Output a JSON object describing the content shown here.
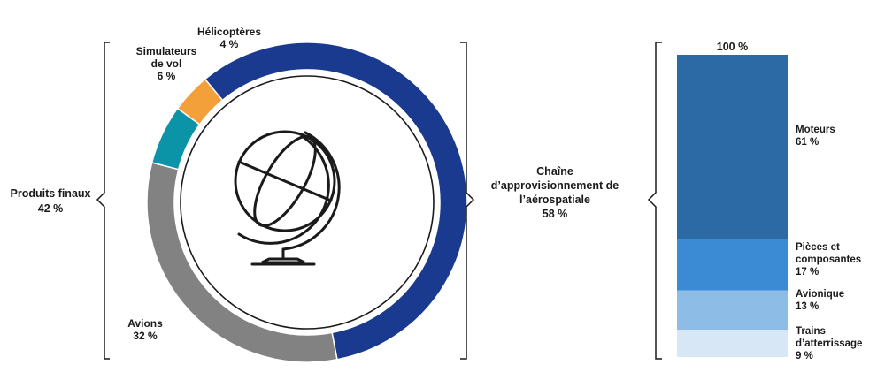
{
  "chart_data": [
    {
      "type": "pie",
      "variant": "donut",
      "slices": [
        {
          "name": "Chaîne d’approvisionnement de l’aérospatiale",
          "label_lines": [
            "Chaîne",
            "d’approvisionnement de",
            "l’aérospatiale"
          ],
          "value": 58,
          "value_label": "58 %",
          "color": "#1a3a8f"
        },
        {
          "name": "Avions",
          "label_lines": [
            "Avions"
          ],
          "value": 32,
          "value_label": "32 %",
          "color": "#828282"
        },
        {
          "name": "Simulateurs de vol",
          "label_lines": [
            "Simulateurs",
            "de vol"
          ],
          "value": 6,
          "value_label": "6 %",
          "color": "#0b94a8"
        },
        {
          "name": "Hélicoptères",
          "label_lines": [
            "Hélicoptères"
          ],
          "value": 4,
          "value_label": "4 %",
          "color": "#f4a03a"
        }
      ],
      "group": {
        "label": "Produits finaux",
        "value_label": "42 %"
      },
      "center_icon": "globe-icon"
    },
    {
      "type": "bar",
      "variant": "stacked-100",
      "total_label": "100 %",
      "segments": [
        {
          "name": "Moteurs",
          "label_lines": [
            "Moteurs"
          ],
          "value": 61,
          "value_label": "61 %",
          "color": "#2c6aa6"
        },
        {
          "name": "Pièces et composantes",
          "label_lines": [
            "Pièces et",
            "composantes"
          ],
          "value": 17,
          "value_label": "17 %",
          "color": "#3a8ad4"
        },
        {
          "name": "Avionique",
          "label_lines": [
            "Avionique"
          ],
          "value": 13,
          "value_label": "13 %",
          "color": "#8dbce6"
        },
        {
          "name": "Trains d’atterrissage",
          "label_lines": [
            "Trains",
            "d’atterrissage"
          ],
          "value": 9,
          "value_label": "9 %",
          "color": "#d8e7f6"
        }
      ]
    }
  ]
}
